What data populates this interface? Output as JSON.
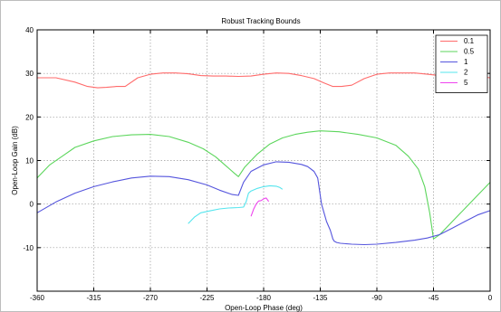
{
  "chart_data": {
    "type": "line",
    "title": "Robust Tracking Bounds",
    "xlabel": "Open-Loop Phase (deg)",
    "ylabel": "Open-Loop Gain (dB)",
    "xlim": [
      -360,
      0
    ],
    "ylim": [
      -20,
      40
    ],
    "xticks": [
      -360,
      -315,
      -270,
      -225,
      -180,
      -135,
      -90,
      -45,
      0
    ],
    "yticks": [
      -10,
      0,
      10,
      20,
      30,
      40
    ],
    "grid": true,
    "legend_position": "top-right",
    "series": [
      {
        "name": "0.1",
        "color": "#ff6b6b",
        "x": [
          -360,
          -345,
          -330,
          -320,
          -312,
          -305,
          -297,
          -290,
          -280,
          -270,
          -260,
          -250,
          -240,
          -230,
          -220,
          -210,
          -200,
          -190,
          -180,
          -170,
          -160,
          -150,
          -140,
          -132,
          -125,
          -118,
          -110,
          -100,
          -90,
          -80,
          -70,
          -60,
          -50,
          -40,
          -30,
          -20,
          -10,
          0
        ],
        "y": [
          29,
          29,
          28,
          27,
          26.7,
          26.8,
          27,
          27,
          29,
          29.8,
          30.1,
          30.1,
          29.9,
          29.5,
          29.4,
          29.4,
          29.3,
          29.4,
          29.8,
          30.1,
          30,
          29.5,
          28.8,
          27.8,
          27,
          27,
          27.3,
          28.8,
          29.8,
          30.1,
          30.1,
          30.1,
          29.8,
          29.5,
          29.3,
          29.3,
          29.3,
          29
        ]
      },
      {
        "name": "0.5",
        "color": "#5cd65c",
        "x": [
          -360,
          -350,
          -340,
          -330,
          -315,
          -300,
          -285,
          -270,
          -255,
          -240,
          -228,
          -218,
          -210,
          -203,
          -200,
          -195,
          -185,
          -175,
          -165,
          -155,
          -145,
          -135,
          -120,
          -105,
          -90,
          -75,
          -65,
          -57,
          -52,
          -48,
          -45,
          -40,
          -30,
          -20,
          -10,
          0
        ],
        "y": [
          6,
          9,
          11,
          13,
          14.5,
          15.5,
          15.9,
          16,
          15.5,
          14.2,
          12.7,
          10.8,
          8.8,
          7,
          6.3,
          8.5,
          11.5,
          13.8,
          15.2,
          16,
          16.5,
          16.8,
          16.6,
          16,
          15.2,
          13.5,
          11,
          8,
          4,
          -2,
          -8,
          -7,
          -4,
          -1,
          2,
          5
        ]
      },
      {
        "name": "1",
        "color": "#5555dd",
        "x": [
          -360,
          -345,
          -330,
          -315,
          -300,
          -285,
          -270,
          -255,
          -240,
          -225,
          -215,
          -205,
          -200,
          -196,
          -190,
          -180,
          -170,
          -160,
          -150,
          -145,
          -140,
          -137,
          -134,
          -130,
          -127,
          -125,
          -124,
          -122,
          -119,
          -110,
          -100,
          -90,
          -75,
          -60,
          -50,
          -40,
          -30,
          -20,
          -10,
          0
        ],
        "y": [
          -2,
          0.5,
          2.5,
          4,
          5.1,
          6,
          6.4,
          6.3,
          5.6,
          4.4,
          3.2,
          2.2,
          2,
          5,
          7.5,
          9,
          9.7,
          9.6,
          9.1,
          8.6,
          7.5,
          6,
          0,
          -4,
          -6,
          -8,
          -8.5,
          -8.8,
          -9,
          -9.2,
          -9.3,
          -9.2,
          -8.8,
          -8.3,
          -7.8,
          -7,
          -5.5,
          -4,
          -2.5,
          -1.5
        ]
      },
      {
        "name": "2",
        "color": "#55e5ee",
        "x": [
          -240,
          -235,
          -230,
          -222,
          -215,
          -208,
          -200,
          -196,
          -194,
          -192,
          -190,
          -185,
          -180,
          -175,
          -170,
          -167,
          -165
        ],
        "y": [
          -4.5,
          -3,
          -2,
          -1.5,
          -1.1,
          -0.9,
          -0.8,
          -0.7,
          0.5,
          2.5,
          3,
          3.6,
          4,
          4.2,
          4.1,
          3.8,
          3.4
        ]
      },
      {
        "name": "5",
        "color": "#ee44ee",
        "x": [
          -190,
          -188,
          -186,
          -184,
          -182,
          -180,
          -178,
          -176
        ],
        "y": [
          -2.8,
          -1.2,
          0,
          0.7,
          0.8,
          1.2,
          1.4,
          0.6
        ]
      }
    ]
  }
}
